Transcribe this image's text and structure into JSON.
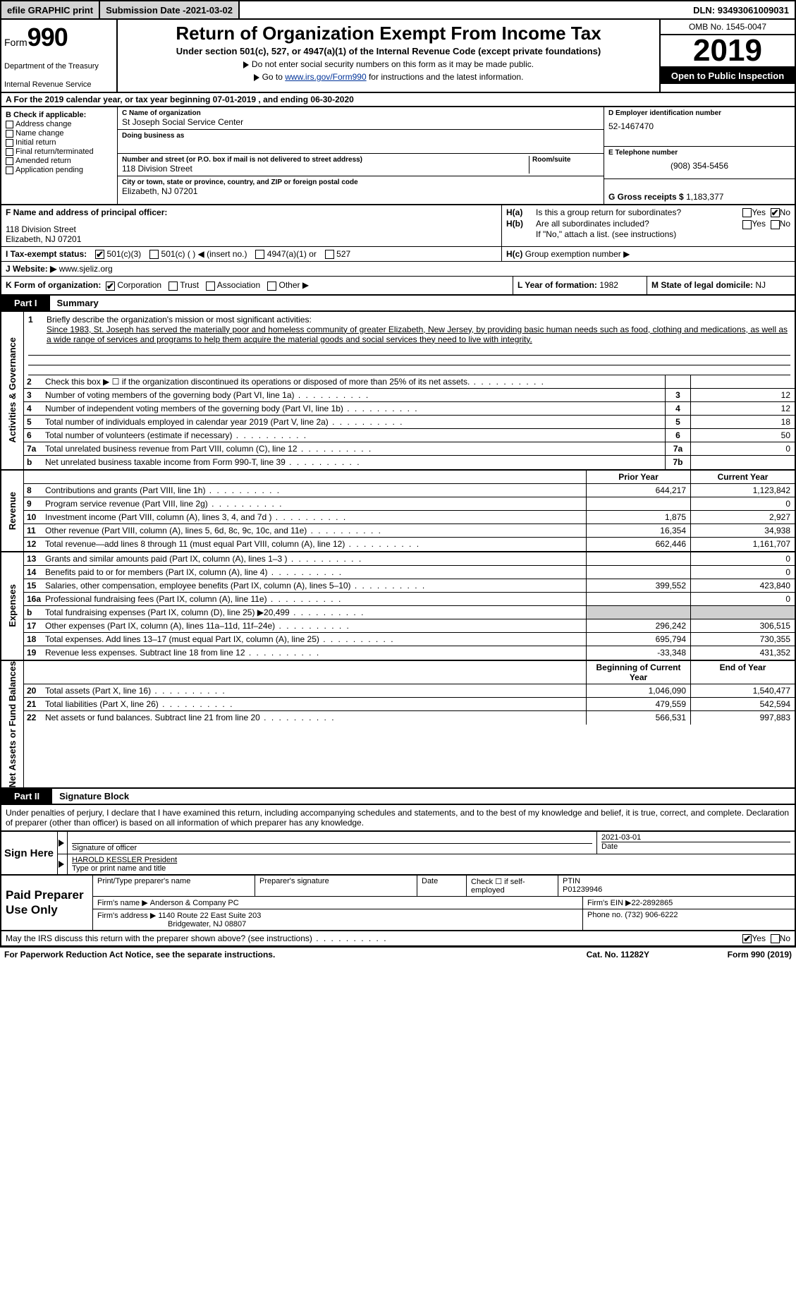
{
  "topbar": {
    "efile": "efile GRAPHIC print",
    "sub_label": "Submission Date - ",
    "sub_date": "2021-03-02",
    "dln_label": "DLN: ",
    "dln": "93493061009031"
  },
  "header": {
    "form_label": "Form",
    "form_number": "990",
    "dept1": "Department of the Treasury",
    "dept2": "Internal Revenue Service",
    "title": "Return of Organization Exempt From Income Tax",
    "subtitle": "Under section 501(c), 527, or 4947(a)(1) of the Internal Revenue Code (except private foundations)",
    "note1": "Do not enter social security numbers on this form as it may be made public.",
    "note2_pre": "Go to ",
    "note2_link": "www.irs.gov/Form990",
    "note2_post": " for instructions and the latest information.",
    "omb": "OMB No. 1545-0047",
    "year": "2019",
    "open_pub": "Open to Public Inspection"
  },
  "line_a": {
    "text_pre": "A  For the 2019 calendar year, or tax year beginning ",
    "begin": "07-01-2019",
    "mid": "   , and ending ",
    "end": "06-30-2020"
  },
  "col_b": {
    "hdr": "B Check if applicable:",
    "opts": [
      "Address change",
      "Name change",
      "Initial return",
      "Final return/terminated",
      "Amended return",
      "Application pending"
    ]
  },
  "col_c": {
    "name_lbl": "C Name of organization",
    "name": "St Joseph Social Service Center",
    "dba_lbl": "Doing business as",
    "street_lbl": "Number and street (or P.O. box if mail is not delivered to street address)",
    "room_lbl": "Room/suite",
    "street": "118 Division Street",
    "city_lbl": "City or town, state or province, country, and ZIP or foreign postal code",
    "city": "Elizabeth, NJ  07201"
  },
  "col_d": {
    "ein_lbl": "D Employer identification number",
    "ein": "52-1467470",
    "tel_lbl": "E Telephone number",
    "tel": "(908) 354-5456",
    "gross_lbl": "G Gross receipts $ ",
    "gross": "1,183,377"
  },
  "row_f": {
    "lbl": "F Name and address of principal officer:",
    "addr1": "118 Division Street",
    "addr2": "Elizabeth, NJ  07201"
  },
  "row_h": {
    "ha": "Is this a group return for subordinates?",
    "ha_yes": "Yes",
    "ha_no": "No",
    "ha_checked": "No",
    "hb": "Are all subordinates included?",
    "hb_yes": "Yes",
    "hb_no": "No",
    "hb_note": "If \"No,\" attach a list. (see instructions)",
    "hc": "Group exemption number ▶",
    "h_a_lbl": "H(a)",
    "h_b_lbl": "H(b)",
    "h_c_lbl": "H(c)"
  },
  "row_i": {
    "lbl": "I   Tax-exempt status:",
    "o1": "501(c)(3)",
    "o2": "501(c) (  ) ◀ (insert no.)",
    "o3": "4947(a)(1) or",
    "o4": "527",
    "checked": "501(c)(3)"
  },
  "row_j": {
    "lbl": "J   Website: ▶",
    "val": "www.sjeliz.org"
  },
  "row_k": {
    "lbl": "K Form of organization:",
    "opts": [
      "Corporation",
      "Trust",
      "Association",
      "Other ▶"
    ],
    "checked": "Corporation",
    "l_lbl": "L Year of formation: ",
    "l_val": "1982",
    "m_lbl": "M State of legal domicile: ",
    "m_val": "NJ"
  },
  "part1": {
    "tab": "Part I",
    "title": "Summary"
  },
  "mission": {
    "num": "1",
    "lbl": "Briefly describe the organization's mission or most significant activities:",
    "text": "Since 1983, St. Joseph has served the materially poor and homeless community of greater Elizabeth, New Jersey, by providing basic human needs such as food, clothing and medications, as well as a wide range of services and programs to help them acquire the material goods and social services they need to live with integrity."
  },
  "gov_rows": [
    {
      "n": "2",
      "d": "Check this box ▶ ☐  if the organization discontinued its operations or disposed of more than 25% of its net assets.",
      "nc": "",
      "v": ""
    },
    {
      "n": "3",
      "d": "Number of voting members of the governing body (Part VI, line 1a)",
      "nc": "3",
      "v": "12"
    },
    {
      "n": "4",
      "d": "Number of independent voting members of the governing body (Part VI, line 1b)",
      "nc": "4",
      "v": "12"
    },
    {
      "n": "5",
      "d": "Total number of individuals employed in calendar year 2019 (Part V, line 2a)",
      "nc": "5",
      "v": "18"
    },
    {
      "n": "6",
      "d": "Total number of volunteers (estimate if necessary)",
      "nc": "6",
      "v": "50"
    },
    {
      "n": "7a",
      "d": "Total unrelated business revenue from Part VIII, column (C), line 12",
      "nc": "7a",
      "v": "0"
    },
    {
      "n": "b",
      "d": "Net unrelated business taxable income from Form 990-T, line 39",
      "nc": "7b",
      "v": ""
    }
  ],
  "col_hdrs": {
    "prior": "Prior Year",
    "current": "Current Year"
  },
  "rev_rows": [
    {
      "n": "8",
      "d": "Contributions and grants (Part VIII, line 1h)",
      "p": "644,217",
      "c": "1,123,842"
    },
    {
      "n": "9",
      "d": "Program service revenue (Part VIII, line 2g)",
      "p": "",
      "c": "0"
    },
    {
      "n": "10",
      "d": "Investment income (Part VIII, column (A), lines 3, 4, and 7d )",
      "p": "1,875",
      "c": "2,927"
    },
    {
      "n": "11",
      "d": "Other revenue (Part VIII, column (A), lines 5, 6d, 8c, 9c, 10c, and 11e)",
      "p": "16,354",
      "c": "34,938"
    },
    {
      "n": "12",
      "d": "Total revenue—add lines 8 through 11 (must equal Part VIII, column (A), line 12)",
      "p": "662,446",
      "c": "1,161,707"
    }
  ],
  "exp_rows": [
    {
      "n": "13",
      "d": "Grants and similar amounts paid (Part IX, column (A), lines 1–3 )",
      "p": "",
      "c": "0"
    },
    {
      "n": "14",
      "d": "Benefits paid to or for members (Part IX, column (A), line 4)",
      "p": "",
      "c": "0"
    },
    {
      "n": "15",
      "d": "Salaries, other compensation, employee benefits (Part IX, column (A), lines 5–10)",
      "p": "399,552",
      "c": "423,840"
    },
    {
      "n": "16a",
      "d": "Professional fundraising fees (Part IX, column (A), line 11e)",
      "p": "",
      "c": "0"
    },
    {
      "n": "b",
      "d": "Total fundraising expenses (Part IX, column (D), line 25) ▶20,499",
      "p": "shade",
      "c": "shade"
    },
    {
      "n": "17",
      "d": "Other expenses (Part IX, column (A), lines 11a–11d, 11f–24e)",
      "p": "296,242",
      "c": "306,515"
    },
    {
      "n": "18",
      "d": "Total expenses. Add lines 13–17 (must equal Part IX, column (A), line 25)",
      "p": "695,794",
      "c": "730,355"
    },
    {
      "n": "19",
      "d": "Revenue less expenses. Subtract line 18 from line 12",
      "p": "-33,348",
      "c": "431,352"
    }
  ],
  "na_hdrs": {
    "begin": "Beginning of Current Year",
    "end": "End of Year"
  },
  "na_rows": [
    {
      "n": "20",
      "d": "Total assets (Part X, line 16)",
      "p": "1,046,090",
      "c": "1,540,477"
    },
    {
      "n": "21",
      "d": "Total liabilities (Part X, line 26)",
      "p": "479,559",
      "c": "542,594"
    },
    {
      "n": "22",
      "d": "Net assets or fund balances. Subtract line 21 from line 20",
      "p": "566,531",
      "c": "997,883"
    }
  ],
  "section_labels": {
    "gov": "Activities & Governance",
    "rev": "Revenue",
    "exp": "Expenses",
    "na": "Net Assets or Fund Balances"
  },
  "part2": {
    "tab": "Part II",
    "title": "Signature Block"
  },
  "sig": {
    "decl": "Under penalties of perjury, I declare that I have examined this return, including accompanying schedules and statements, and to the best of my knowledge and belief, it is true, correct, and complete. Declaration of preparer (other than officer) is based on all information of which preparer has any knowledge.",
    "sign_here": "Sign Here",
    "sig_officer_lbl": "Signature of officer",
    "date_lbl": "Date",
    "date_val": "2021-03-01",
    "name": "HAROLD KESSLER  President",
    "name_lbl": "Type or print name and title"
  },
  "prep": {
    "hdr": "Paid Preparer Use Only",
    "r1": {
      "c1": "Print/Type preparer's name",
      "c2": "Preparer's signature",
      "c3": "Date",
      "c4_lbl": "Check ☐ if self-employed",
      "c5_lbl": "PTIN",
      "c5": "P01239946"
    },
    "r2": {
      "lbl": "Firm's name     ▶",
      "val": "Anderson & Company PC",
      "ein_lbl": "Firm's EIN ▶",
      "ein": "22-2892865"
    },
    "r3": {
      "lbl": "Firm's address ▶",
      "val1": "1140 Route 22 East Suite 203",
      "val2": "Bridgewater, NJ  08807",
      "ph_lbl": "Phone no. ",
      "ph": "(732) 906-6222"
    }
  },
  "irs_discuss": {
    "text": "May the IRS discuss this return with the preparer shown above? (see instructions)",
    "yes": "Yes",
    "no": "No",
    "checked": "Yes"
  },
  "footer": {
    "left": "For Paperwork Reduction Act Notice, see the separate instructions.",
    "mid": "Cat. No. 11282Y",
    "right": "Form 990 (2019)"
  }
}
